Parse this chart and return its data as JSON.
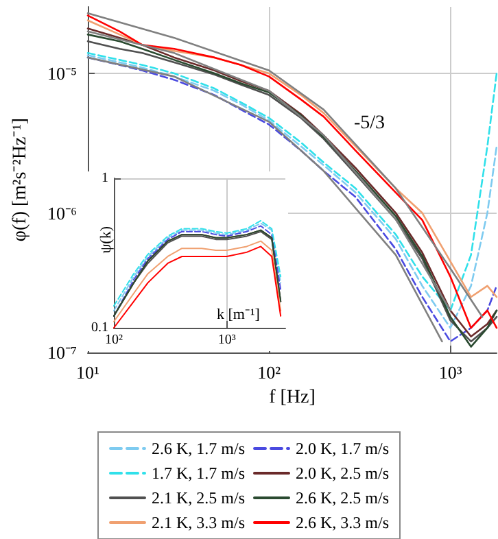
{
  "chart_data": [
    {
      "type": "line",
      "xlabel": "f [Hz]",
      "ylabel": "φ(f) [m²s⁻²Hz⁻¹]",
      "log": "xy",
      "grid": true,
      "legend": "bottom",
      "marker": "none",
      "xlim": [
        10,
        1800
      ],
      "ylim": [
        1e-07,
        3e-05
      ],
      "xticks": [
        {
          "value": 10,
          "label": "10¹"
        },
        {
          "value": 100,
          "label": "10²"
        },
        {
          "value": 1000,
          "label": "10³"
        }
      ],
      "yticks": [
        {
          "value": 1e-07,
          "label": "10⁻⁷"
        },
        {
          "value": 1e-06,
          "label": "10⁻⁶"
        },
        {
          "value": 1e-05,
          "label": "10⁻⁵"
        }
      ],
      "annotations": [
        "-5/3"
      ],
      "x": [
        10,
        15,
        20,
        30,
        50,
        70,
        100,
        150,
        200,
        300,
        500,
        700,
        1000,
        1300,
        1600,
        1800
      ],
      "series": [
        {
          "name": "2.6 K, 1.7 m/s",
          "color": "#7ecbf0",
          "line_style": "dashed",
          "values": [
            1.35e-05,
            1.2e-05,
            1.1e-05,
            9.5e-06,
            7.5e-06,
            6e-06,
            4.6e-06,
            3e-06,
            2.2e-06,
            1.4e-06,
            6.5e-07,
            3e-07,
            1.5e-07,
            3e-07,
            1e-06,
            3e-06
          ]
        },
        {
          "name": "2.0 K, 1.7 m/s",
          "color": "#4a4ae0",
          "line_style": "dashed",
          "values": [
            1.3e-05,
            1.15e-05,
            1.05e-05,
            9e-06,
            7e-06,
            5.5e-06,
            4.3e-06,
            2.8e-06,
            2e-06,
            1.3e-06,
            5.5e-07,
            2.5e-07,
            1.2e-07,
            1.5e-07,
            2e-07,
            3e-07
          ]
        },
        {
          "name": "1.7 K, 1.7 m/s",
          "color": "#30e0ea",
          "line_style": "dashed",
          "values": [
            1.4e-05,
            1.25e-05,
            1.15e-05,
            1e-05,
            7.8e-06,
            6.2e-06,
            4.8e-06,
            3.2e-06,
            2.3e-06,
            1.5e-06,
            7e-07,
            3.5e-07,
            2e-07,
            5e-07,
            3e-06,
            1e-05
          ]
        },
        {
          "name": "2.0 K, 2.5 m/s",
          "color": "#6a2a2a",
          "line_style": "solid",
          "values": [
            2.1e-05,
            1.8e-05,
            1.6e-05,
            1.3e-05,
            1.05e-05,
            8.8e-06,
            7.5e-06,
            5.1e-06,
            3.6e-06,
            2.1e-06,
            1e-06,
            5.2e-07,
            2e-07,
            1.3e-07,
            1.6e-07,
            2e-07
          ]
        },
        {
          "name": "2.1 K, 2.5 m/s",
          "color": "#505050",
          "line_style": "solid",
          "values": [
            1.7e-05,
            1.5e-05,
            1.4e-05,
            1.2e-05,
            9.8e-06,
            8.3e-06,
            7e-06,
            4.8e-06,
            3.4e-06,
            1.9e-06,
            9e-07,
            4.7e-07,
            1.7e-07,
            1.2e-07,
            1.5e-07,
            1.8e-07
          ]
        },
        {
          "name": "2.6 K, 2.5 m/s",
          "color": "#2a4a30",
          "line_style": "solid",
          "values": [
            1.9e-05,
            1.7e-05,
            1.5e-05,
            1.25e-05,
            1e-05,
            8.5e-06,
            7.3e-06,
            5e-06,
            3.5e-06,
            2e-06,
            9.5e-07,
            4.9e-07,
            1.8e-07,
            1.1e-07,
            1.5e-07,
            2e-07
          ]
        },
        {
          "name": "2.1 K, 3.3 m/s",
          "color": "#f0a070",
          "line_style": "solid",
          "values": [
            2.4e-05,
            1.9e-05,
            1.6e-05,
            1.45e-05,
            1.3e-05,
            1.15e-05,
            1e-05,
            7e-06,
            5.2e-06,
            3e-06,
            1.5e-06,
            1e-06,
            4.5e-07,
            2.5e-07,
            3e-07,
            2.5e-07
          ]
        },
        {
          "name": "2.6 K, 3.3 m/s",
          "color": "#ff0000",
          "line_style": "solid",
          "values": [
            2.6e-05,
            2e-05,
            1.6e-05,
            1.5e-05,
            1.3e-05,
            1.15e-05,
            9.5e-06,
            6.5e-06,
            4.9e-06,
            2.8e-06,
            1.4e-06,
            8.9e-07,
            3.5e-07,
            1.5e-07,
            2e-07,
            1.5e-07
          ]
        },
        {
          "color": "#808080",
          "line_style": "solid",
          "x": [
            10,
            30,
            100,
            200,
            500,
            1000,
            1500
          ],
          "values": [
            2.7e-05,
            1.8e-05,
            1.05e-05,
            5.5e-06,
            1.5e-06,
            4e-07,
            1.8e-07
          ]
        },
        {
          "color": "#808080",
          "line_style": "solid",
          "x": [
            10,
            30,
            100,
            200,
            500,
            1000
          ],
          "values": [
            2e-05,
            1.4e-05,
            7.5e-06,
            3.6e-06,
            9e-07,
            2e-07
          ]
        },
        {
          "color": "#808080",
          "line_style": "solid",
          "x": [
            10,
            30,
            100,
            200,
            500,
            900
          ],
          "values": [
            1.3e-05,
            9.5e-06,
            4.5e-06,
            2e-06,
            5e-07,
            1.2e-07
          ]
        }
      ]
    },
    {
      "type": "line",
      "xlabel": "k [m⁻¹]",
      "ylabel": "ψ(k)",
      "log": "xy",
      "grid": true,
      "marker": "none",
      "xlim": [
        100,
        3300
      ],
      "ylim": [
        0.1,
        1
      ],
      "xticks": [
        {
          "value": 100,
          "label": "10²"
        },
        {
          "value": 1000,
          "label": "10³"
        }
      ],
      "yticks": [
        0.1,
        1
      ],
      "x": [
        100,
        150,
        200,
        300,
        400,
        600,
        800,
        1000,
        1500,
        2000,
        2500,
        3000
      ],
      "series": [
        {
          "color": "#7ecbf0",
          "line_style": "dashed",
          "values": [
            0.13,
            0.22,
            0.3,
            0.4,
            0.45,
            0.45,
            0.43,
            0.42,
            0.45,
            0.5,
            0.45,
            0.2
          ]
        },
        {
          "color": "#4a4ae0",
          "line_style": "dashed",
          "values": [
            0.12,
            0.21,
            0.29,
            0.39,
            0.44,
            0.44,
            0.42,
            0.41,
            0.44,
            0.48,
            0.42,
            0.18
          ]
        },
        {
          "color": "#30e0ea",
          "line_style": "dashed",
          "values": [
            0.14,
            0.23,
            0.31,
            0.41,
            0.46,
            0.46,
            0.44,
            0.43,
            0.46,
            0.52,
            0.46,
            0.22
          ]
        },
        {
          "color": "#6a2a2a",
          "line_style": "solid",
          "values": [
            0.12,
            0.2,
            0.28,
            0.38,
            0.42,
            0.42,
            0.4,
            0.4,
            0.42,
            0.45,
            0.4,
            0.15
          ]
        },
        {
          "color": "#505050",
          "line_style": "solid",
          "values": [
            0.12,
            0.2,
            0.27,
            0.37,
            0.41,
            0.41,
            0.39,
            0.39,
            0.41,
            0.44,
            0.39,
            0.15
          ]
        },
        {
          "color": "#2a4a30",
          "line_style": "solid",
          "values": [
            0.12,
            0.2,
            0.28,
            0.38,
            0.42,
            0.42,
            0.4,
            0.4,
            0.42,
            0.45,
            0.4,
            0.15
          ]
        },
        {
          "color": "#f0a070",
          "line_style": "solid",
          "values": [
            0.11,
            0.17,
            0.23,
            0.3,
            0.34,
            0.34,
            0.33,
            0.33,
            0.35,
            0.38,
            0.33,
            0.13
          ]
        },
        {
          "color": "#ff0000",
          "line_style": "solid",
          "values": [
            0.1,
            0.15,
            0.2,
            0.27,
            0.3,
            0.3,
            0.3,
            0.3,
            0.32,
            0.35,
            0.3,
            0.12
          ]
        }
      ]
    }
  ]
}
